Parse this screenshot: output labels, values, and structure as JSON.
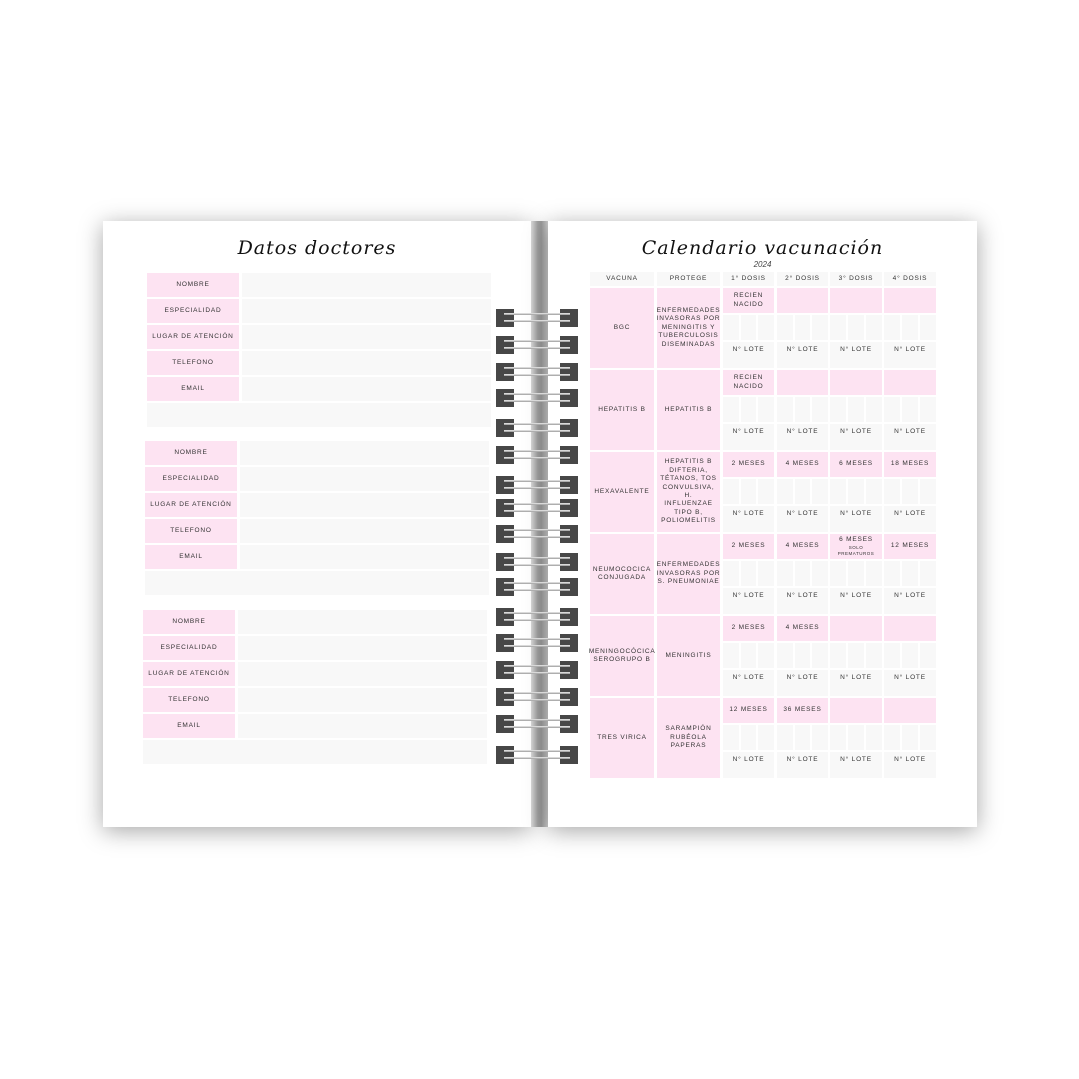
{
  "left_page": {
    "title": "Datos doctores",
    "blocks": [
      {
        "fields": [
          "NOMBRE",
          "ESPECIALIDAD",
          "LUGAR DE ATENCIÓN",
          "TELEFONO",
          "EMAIL"
        ]
      },
      {
        "fields": [
          "NOMBRE",
          "ESPECIALIDAD",
          "LUGAR DE ATENCIÓN",
          "TELEFONO",
          "EMAIL"
        ]
      },
      {
        "fields": [
          "NOMBRE",
          "ESPECIALIDAD",
          "LUGAR DE ATENCIÓN",
          "TELEFONO",
          "EMAIL"
        ]
      }
    ]
  },
  "right_page": {
    "title": "Calendario vacunación",
    "year": "2024",
    "headers": [
      "VACUNA",
      "PROTEGE",
      "1° DOSIS",
      "2° DOSIS",
      "3° DOSIS",
      "4°  DOSIS"
    ],
    "lote_label": "N° LOTE",
    "vaccines": [
      {
        "name": "BGC",
        "protects": "ENFERMEDADES INVASORAS POR MENINGITIS Y TUBERCULOSIS DISEMINADAS",
        "doses": [
          "RECIEN NACIDO",
          "",
          "",
          ""
        ]
      },
      {
        "name": "HEPATITIS B",
        "protects": "HEPATITIS B",
        "doses": [
          "RECIEN NACIDO",
          "",
          "",
          ""
        ]
      },
      {
        "name": "HEXAVALENTE",
        "protects": "HEPATITIS B DIFTERIA, TÉTANOS, TOS CONVULSIVA, H. INFLUENZAE  TIPO B, POLIOMELITIS",
        "doses": [
          "2 MESES",
          "4 MESES",
          "6  MESES",
          "18 MESES"
        ]
      },
      {
        "name": "NEUMOCOCICA CONJUGADA",
        "protects": "ENFERMEDADES INVASORAS POR S. PNEUMONIAE",
        "doses": [
          "2 MESES",
          "4 MESES",
          "6 MESES",
          "12 MESES"
        ],
        "dose_notes": [
          "",
          "",
          "SOLO PREMATUROS",
          ""
        ]
      },
      {
        "name": "MENINGOCÓCICA SEROGRUPO B",
        "protects": "MENINGITIS",
        "doses": [
          "2 MESES",
          "4 MESES",
          "",
          ""
        ]
      },
      {
        "name": "TRES VIRICA",
        "protects": "SARAMPIÓN RUBÉOLA PAPERAS",
        "doses": [
          "12 MESES",
          "36 MESES",
          "",
          ""
        ]
      }
    ]
  },
  "colors": {
    "pink": "#fde3f2",
    "field": "#f8f8f8",
    "ring": "#474747"
  }
}
